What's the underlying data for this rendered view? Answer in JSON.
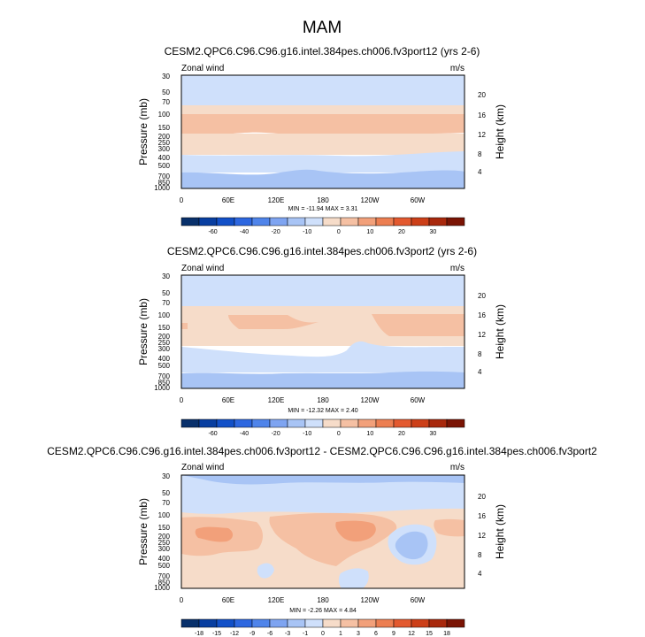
{
  "figure_title": "MAM",
  "chart_data": [
    {
      "type": "heatmap",
      "title": "CESM2.QPC6.C96.C96.g16.intel.384pes.ch006.fv3port12 (yrs 2-6)",
      "left_label": "Zonal wind",
      "right_label": "m/s",
      "ylabel": "Pressure (mb)",
      "ylabel_right": "Height (km)",
      "x_ticks": [
        "0",
        "60E",
        "120E",
        "180",
        "120W",
        "60W"
      ],
      "y_ticks": [
        "30",
        "50",
        "70",
        "100",
        "150",
        "200",
        "250",
        "300",
        "400",
        "500",
        "700",
        "850",
        "1000"
      ],
      "height_ticks": [
        "20",
        "16",
        "12",
        "8",
        "4"
      ],
      "stats": "MIN = -11.94   MAX =  3.31",
      "bands": [
        {
          "p_top": 30,
          "p_bottom": 80,
          "value": -5
        },
        {
          "p_top": 80,
          "p_bottom": 100,
          "value": 0.5
        },
        {
          "p_top": 100,
          "p_bottom": 230,
          "value": 2
        },
        {
          "p_top": 230,
          "p_bottom": 380,
          "value": 0.5
        },
        {
          "p_top": 380,
          "p_bottom": 620,
          "value": -5
        },
        {
          "p_top": 620,
          "p_bottom": 1000,
          "value": -8
        }
      ],
      "colorbar": {
        "labels": [
          "-60",
          "-40",
          "-20",
          "-10",
          "0",
          "10",
          "20",
          "30"
        ],
        "colors": [
          "#08306b",
          "#083ea0",
          "#1250c8",
          "#2d67e0",
          "#4f84ea",
          "#7ea4f1",
          "#a8c4f5",
          "#cfe0fb",
          "#f6dcc9",
          "#f5c0a3",
          "#f2a07a",
          "#ec7e51",
          "#e3592f",
          "#cc3f18",
          "#a8280c",
          "#7a1404"
        ]
      }
    },
    {
      "type": "heatmap",
      "title": "CESM2.QPC6.C96.C96.g16.intel.384pes.ch006.fv3port2 (yrs 2-6)",
      "left_label": "Zonal wind",
      "right_label": "m/s",
      "ylabel": "Pressure (mb)",
      "ylabel_right": "Height (km)",
      "x_ticks": [
        "0",
        "60E",
        "120E",
        "180",
        "120W",
        "60W"
      ],
      "y_ticks": [
        "30",
        "50",
        "70",
        "100",
        "150",
        "200",
        "250",
        "300",
        "400",
        "500",
        "700",
        "850",
        "1000"
      ],
      "height_ticks": [
        "20",
        "16",
        "12",
        "8",
        "4"
      ],
      "stats": "MIN = -12.32   MAX =  2.40",
      "bands": [
        {
          "p_top": 30,
          "p_bottom": 80,
          "value": -5
        },
        {
          "p_top": 80,
          "p_bottom": 250,
          "value": 0.5
        },
        {
          "p_top": 250,
          "p_bottom": 400,
          "value": -5
        },
        {
          "p_top": 400,
          "p_bottom": 620,
          "value": -5
        },
        {
          "p_top": 620,
          "p_bottom": 1000,
          "value": -8
        }
      ],
      "colorbar": {
        "labels": [
          "-60",
          "-40",
          "-20",
          "-10",
          "0",
          "10",
          "20",
          "30"
        ],
        "colors": [
          "#08306b",
          "#083ea0",
          "#1250c8",
          "#2d67e0",
          "#4f84ea",
          "#7ea4f1",
          "#a8c4f5",
          "#cfe0fb",
          "#f6dcc9",
          "#f5c0a3",
          "#f2a07a",
          "#ec7e51",
          "#e3592f",
          "#cc3f18",
          "#a8280c",
          "#7a1404"
        ]
      }
    },
    {
      "type": "heatmap",
      "title": "CESM2.QPC6.C96.C96.g16.intel.384pes.ch006.fv3port12 - CESM2.QPC6.C96.C96.g16.intel.384pes.ch006.fv3port2",
      "left_label": "Zonal wind",
      "right_label": "m/s",
      "ylabel": "Pressure (mb)",
      "ylabel_right": "Height (km)",
      "x_ticks": [
        "0",
        "60E",
        "120E",
        "180",
        "120W",
        "60W"
      ],
      "y_ticks": [
        "30",
        "50",
        "70",
        "100",
        "150",
        "200",
        "250",
        "300",
        "400",
        "500",
        "700",
        "850",
        "1000"
      ],
      "height_ticks": [
        "20",
        "16",
        "12",
        "8",
        "4"
      ],
      "stats": "MIN =  -2.26   MAX =  4.84",
      "bands": [
        {
          "p_top": 30,
          "p_bottom": 40,
          "value": -0.5
        },
        {
          "p_top": 40,
          "p_bottom": 80,
          "value": -0.5
        },
        {
          "p_top": 80,
          "p_bottom": 1000,
          "value": 0.5
        }
      ],
      "colorbar": {
        "labels": [
          "-18",
          "-15",
          "-12",
          "-9",
          "-6",
          "-3",
          "-1",
          "0",
          "1",
          "3",
          "6",
          "9",
          "12",
          "15",
          "18"
        ],
        "colors": [
          "#08306b",
          "#083ea0",
          "#1250c8",
          "#2d67e0",
          "#4f84ea",
          "#7ea4f1",
          "#a8c4f5",
          "#cfe0fb",
          "#f6dcc9",
          "#f5c0a3",
          "#f2a07a",
          "#ec7e51",
          "#e3592f",
          "#cc3f18",
          "#a8280c",
          "#7a1404"
        ]
      }
    }
  ]
}
